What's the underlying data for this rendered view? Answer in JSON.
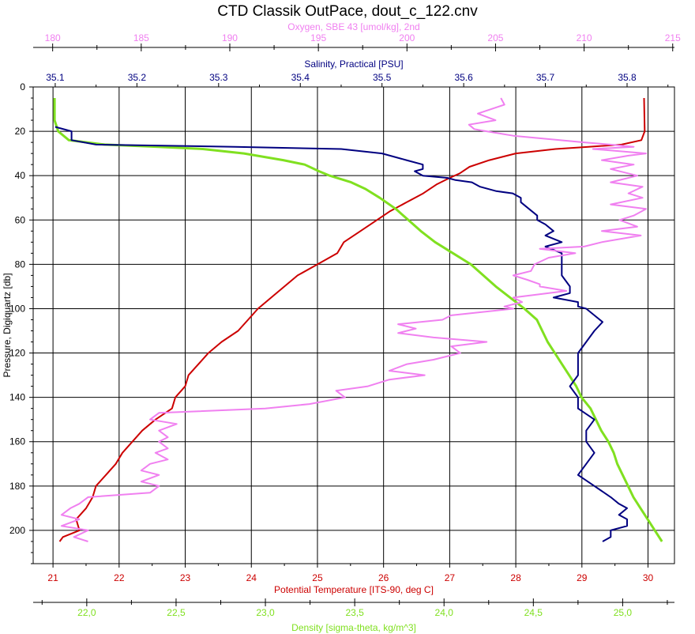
{
  "chart_data": {
    "type": "line",
    "title": "CTD Classik OutPace, dout_c_122.cnv",
    "grid": true,
    "y_axis": {
      "label": "Pressure, Digiquartz [db]",
      "range": [
        0,
        215
      ],
      "inverted": true,
      "ticks": [
        0,
        20,
        40,
        60,
        80,
        100,
        120,
        140,
        160,
        180,
        200
      ]
    },
    "x_axes": [
      {
        "id": "temperature",
        "label": "Potential Temperature [ITS-90, deg C]",
        "position": "bottom",
        "color": "#cc0000",
        "range": [
          20.7,
          30.4
        ],
        "ticks": [
          21,
          22,
          23,
          24,
          25,
          26,
          27,
          28,
          29,
          30
        ],
        "tick_labels": [
          "21",
          "22",
          "23",
          "24",
          "25",
          "26",
          "27",
          "28",
          "29",
          "30"
        ],
        "draws_grid": true
      },
      {
        "id": "density",
        "label": "Density [sigma-theta, kg/m^3]",
        "position": "bottom-outer",
        "color": "#80e020",
        "range": [
          21.7,
          25.29
        ],
        "ticks": [
          22.0,
          22.5,
          23.0,
          23.5,
          24.0,
          24.5,
          25.0
        ],
        "tick_labels": [
          "22,0",
          "22,5",
          "23,0",
          "23,5",
          "24,0",
          "24,5",
          "25,0"
        ]
      },
      {
        "id": "salinity",
        "label": "Salinity, Practical [PSU]",
        "position": "top-inner",
        "color": "#000080",
        "range": [
          35.073,
          35.858
        ],
        "ticks": [
          35.1,
          35.2,
          35.3,
          35.4,
          35.5,
          35.6,
          35.7,
          35.8
        ],
        "tick_labels": [
          "35.1",
          "35.2",
          "35.3",
          "35.4",
          "35.5",
          "35.6",
          "35.7",
          "35.8"
        ]
      },
      {
        "id": "oxygen",
        "label": "Oxygen, SBE 43 [umol/kg], 2nd",
        "position": "top-outer",
        "color": "#f080f0",
        "range": [
          178.9,
          215.1
        ],
        "ticks": [
          180,
          185,
          190,
          195,
          200,
          205,
          210,
          215
        ],
        "tick_labels": [
          "180",
          "185",
          "190",
          "195",
          "200",
          "205",
          "210",
          "215"
        ]
      }
    ],
    "series": [
      {
        "axis": "temperature",
        "color": "#cc0000",
        "pressure": [
          5,
          20,
          24,
          26,
          27,
          28,
          30,
          33,
          36,
          39,
          41,
          44,
          48,
          52,
          56,
          60,
          65,
          70,
          75,
          80,
          85,
          90,
          95,
          100,
          105,
          110,
          115,
          120,
          125,
          130,
          135,
          140,
          145,
          150,
          155,
          160,
          165,
          170,
          175,
          180,
          185,
          190,
          195,
          200,
          203,
          205
        ],
        "values": [
          29.94,
          29.95,
          29.9,
          29.6,
          29.1,
          28.6,
          28.0,
          27.6,
          27.3,
          27.15,
          27.0,
          26.8,
          26.6,
          26.35,
          26.1,
          25.9,
          25.65,
          25.4,
          25.3,
          25.0,
          24.7,
          24.5,
          24.3,
          24.1,
          23.95,
          23.8,
          23.55,
          23.35,
          23.2,
          23.05,
          23.0,
          22.85,
          22.8,
          22.55,
          22.35,
          22.2,
          22.05,
          21.95,
          21.8,
          21.65,
          21.6,
          21.5,
          21.35,
          21.4,
          21.15,
          21.1
        ]
      },
      {
        "axis": "density",
        "color": "#80e020",
        "pressure": [
          5,
          15,
          20,
          24,
          26,
          27,
          28,
          30,
          33,
          35,
          38,
          40,
          43,
          46,
          50,
          55,
          60,
          65,
          70,
          75,
          80,
          85,
          90,
          95,
          100,
          105,
          110,
          115,
          120,
          125,
          130,
          135,
          140,
          145,
          150,
          155,
          160,
          165,
          170,
          175,
          180,
          185,
          190,
          195,
          200,
          205
        ],
        "values": [
          21.82,
          21.82,
          21.84,
          21.9,
          22.1,
          22.4,
          22.65,
          22.88,
          23.1,
          23.22,
          23.3,
          23.36,
          23.48,
          23.56,
          23.64,
          23.73,
          23.8,
          23.87,
          23.95,
          24.05,
          24.15,
          24.22,
          24.29,
          24.37,
          24.45,
          24.52,
          24.55,
          24.58,
          24.62,
          24.66,
          24.7,
          24.74,
          24.77,
          24.82,
          24.85,
          24.88,
          24.92,
          24.95,
          24.97,
          25.0,
          25.03,
          25.06,
          25.1,
          25.14,
          25.18,
          25.22
        ]
      },
      {
        "axis": "salinity",
        "color": "#000080",
        "pressure": [
          18,
          20,
          24,
          26,
          27,
          28,
          30,
          33,
          35,
          37,
          38,
          40,
          41,
          42,
          43,
          45,
          47,
          48,
          50,
          52,
          55,
          58,
          60,
          62,
          65,
          67,
          70,
          72,
          75,
          80,
          85,
          90,
          93,
          95,
          97,
          99,
          100,
          103,
          106,
          110,
          115,
          120,
          125,
          130,
          135,
          140,
          145,
          150,
          155,
          160,
          165,
          170,
          175,
          180,
          185,
          188,
          190,
          193,
          195,
          198,
          200,
          203,
          205
        ],
        "values": [
          35.1,
          35.12,
          35.12,
          35.15,
          35.32,
          35.45,
          35.5,
          35.53,
          35.55,
          35.55,
          35.54,
          35.55,
          35.58,
          35.59,
          35.61,
          35.62,
          35.64,
          35.66,
          35.67,
          35.67,
          35.68,
          35.69,
          35.69,
          35.7,
          35.71,
          35.7,
          35.72,
          35.7,
          35.72,
          35.72,
          35.72,
          35.73,
          35.73,
          35.71,
          35.74,
          35.74,
          35.75,
          35.76,
          35.77,
          35.76,
          35.75,
          35.74,
          35.74,
          35.74,
          35.73,
          35.74,
          35.74,
          35.76,
          35.75,
          35.75,
          35.76,
          35.75,
          35.74,
          35.76,
          35.78,
          35.79,
          35.8,
          35.79,
          35.8,
          35.8,
          35.78,
          35.78,
          35.77
        ]
      },
      {
        "axis": "oxygen",
        "color": "#f080f0",
        "pressure": [
          5,
          8,
          12,
          15,
          17,
          19,
          20,
          22,
          25,
          26,
          27,
          28,
          29,
          30,
          31,
          33,
          35,
          37,
          40,
          43,
          45,
          48,
          50,
          53,
          55,
          58,
          60,
          63,
          65,
          67,
          70,
          72,
          73,
          75,
          77,
          80,
          83,
          85,
          87,
          89,
          90,
          92,
          95,
          97,
          99,
          100,
          103,
          105,
          107,
          109,
          111,
          113,
          115,
          117,
          120,
          123,
          125,
          128,
          130,
          132,
          135,
          137,
          140,
          143,
          145,
          147,
          150,
          152,
          155,
          158,
          160,
          163,
          165,
          168,
          170,
          173,
          175,
          178,
          180,
          183,
          185,
          188,
          190,
          193,
          195,
          198,
          200,
          203,
          205
        ],
        "values": [
          205.3,
          205.5,
          204.0,
          205.0,
          203.5,
          203.8,
          204.5,
          206.0,
          210.0,
          211.5,
          212.8,
          210.5,
          212.0,
          213.5,
          212.5,
          211.0,
          212.8,
          211.5,
          213.0,
          211.5,
          213.3,
          212.5,
          213.3,
          211.5,
          213.5,
          212.8,
          212.0,
          213.0,
          211.0,
          213.2,
          211.0,
          210.0,
          207.5,
          209.5,
          208.0,
          207.2,
          207.0,
          206.0,
          206.8,
          207.5,
          207.5,
          209.0,
          206.0,
          206.5,
          205.5,
          206.0,
          202.5,
          202.0,
          199.5,
          200.5,
          199.5,
          201.5,
          204.5,
          202.5,
          203.0,
          201.5,
          200.0,
          199.0,
          201.0,
          199.0,
          197.8,
          196.0,
          196.5,
          194.5,
          192.0,
          186.0,
          185.5,
          187.0,
          186.0,
          186.5,
          186.0,
          186.5,
          185.8,
          186.5,
          185.5,
          185.0,
          186.0,
          185.0,
          186.0,
          185.5,
          182.0,
          181.5,
          181.0,
          180.5,
          181.5,
          180.5,
          182.0,
          181.2,
          182.0
        ]
      }
    ]
  }
}
